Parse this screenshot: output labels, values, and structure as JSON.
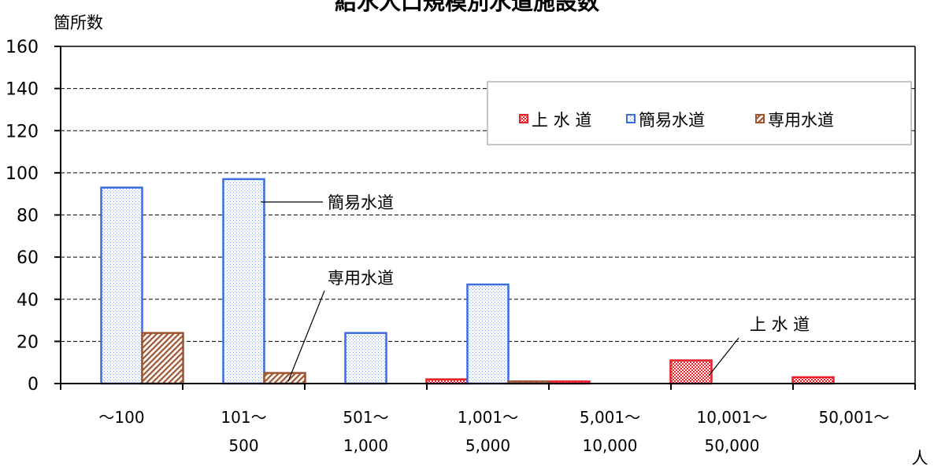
{
  "chart_data": {
    "type": "bar",
    "title": "給水人口規模別水道施設数",
    "ylabel": "箇所数",
    "xunit": "人",
    "ylim": [
      0,
      160
    ],
    "yticks": [
      0,
      20,
      40,
      60,
      80,
      100,
      120,
      140,
      160
    ],
    "grid": true,
    "legend_position": "top-right",
    "categories": [
      [
        "～100"
      ],
      [
        "101～",
        "500"
      ],
      [
        "501～",
        "1,000"
      ],
      [
        "1,001～",
        "5,000"
      ],
      [
        "5,001～",
        "10,000"
      ],
      [
        "10,001～",
        "50,000"
      ],
      [
        "50,001～"
      ]
    ],
    "series": [
      {
        "name": "上 水 道",
        "values": [
          0,
          0,
          0,
          2,
          1,
          11,
          3
        ],
        "color": "#e8202a",
        "pattern": "checker"
      },
      {
        "name": "簡易水道",
        "values": [
          93,
          97,
          24,
          47,
          0,
          0,
          0
        ],
        "color": "#3a6be0",
        "pattern": "dots"
      },
      {
        "name": "専用水道",
        "values": [
          24,
          5,
          0,
          1,
          0,
          0,
          0
        ],
        "color": "#a0522d",
        "pattern": "diagonal"
      }
    ],
    "annotations": [
      {
        "text": "簡易水道",
        "series": 1,
        "category": 1
      },
      {
        "text": "専用水道",
        "series": 2,
        "category": 1
      },
      {
        "text": "上 水 道",
        "series": 0,
        "category": 5
      }
    ]
  }
}
